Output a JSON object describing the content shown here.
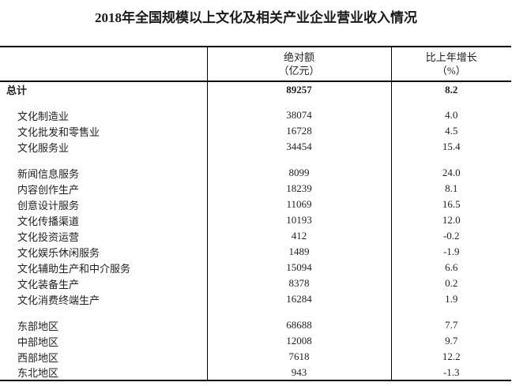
{
  "title": "2018年全国规模以上文化及相关产业企业营业收入情况",
  "table": {
    "header": {
      "indicator": "",
      "amount_line1": "绝对额",
      "amount_line2": "（亿元）",
      "growth_line1": "比上年增长",
      "growth_line2": "（%）"
    },
    "rows": [
      {
        "label": "总计",
        "value": "89257",
        "growth": "8.2"
      },
      {
        "label": "文化制造业",
        "value": "38074",
        "growth": "4.0"
      },
      {
        "label": "文化批发和零售业",
        "value": "16728",
        "growth": "4.5"
      },
      {
        "label": "文化服务业",
        "value": "34454",
        "growth": "15.4"
      },
      {
        "label": "新闻信息服务",
        "value": "8099",
        "growth": "24.0"
      },
      {
        "label": "内容创作生产",
        "value": "18239",
        "growth": "8.1"
      },
      {
        "label": "创意设计服务",
        "value": "11069",
        "growth": "16.5"
      },
      {
        "label": "文化传播渠道",
        "value": "10193",
        "growth": "12.0"
      },
      {
        "label": "文化投资运营",
        "value": "412",
        "growth": "-0.2"
      },
      {
        "label": "文化娱乐休闲服务",
        "value": "1489",
        "growth": "-1.9"
      },
      {
        "label": "文化辅助生产和中介服务",
        "value": "15094",
        "growth": "6.6"
      },
      {
        "label": "文化装备生产",
        "value": "8378",
        "growth": "0.2"
      },
      {
        "label": "文化消费终端生产",
        "value": "16284",
        "growth": "1.9"
      },
      {
        "label": "东部地区",
        "value": "68688",
        "growth": "7.7"
      },
      {
        "label": "中部地区",
        "value": "12008",
        "growth": "9.7"
      },
      {
        "label": "西部地区",
        "value": "7618",
        "growth": "12.2"
      },
      {
        "label": "东北地区",
        "value": "943",
        "growth": "-1.3"
      }
    ]
  }
}
